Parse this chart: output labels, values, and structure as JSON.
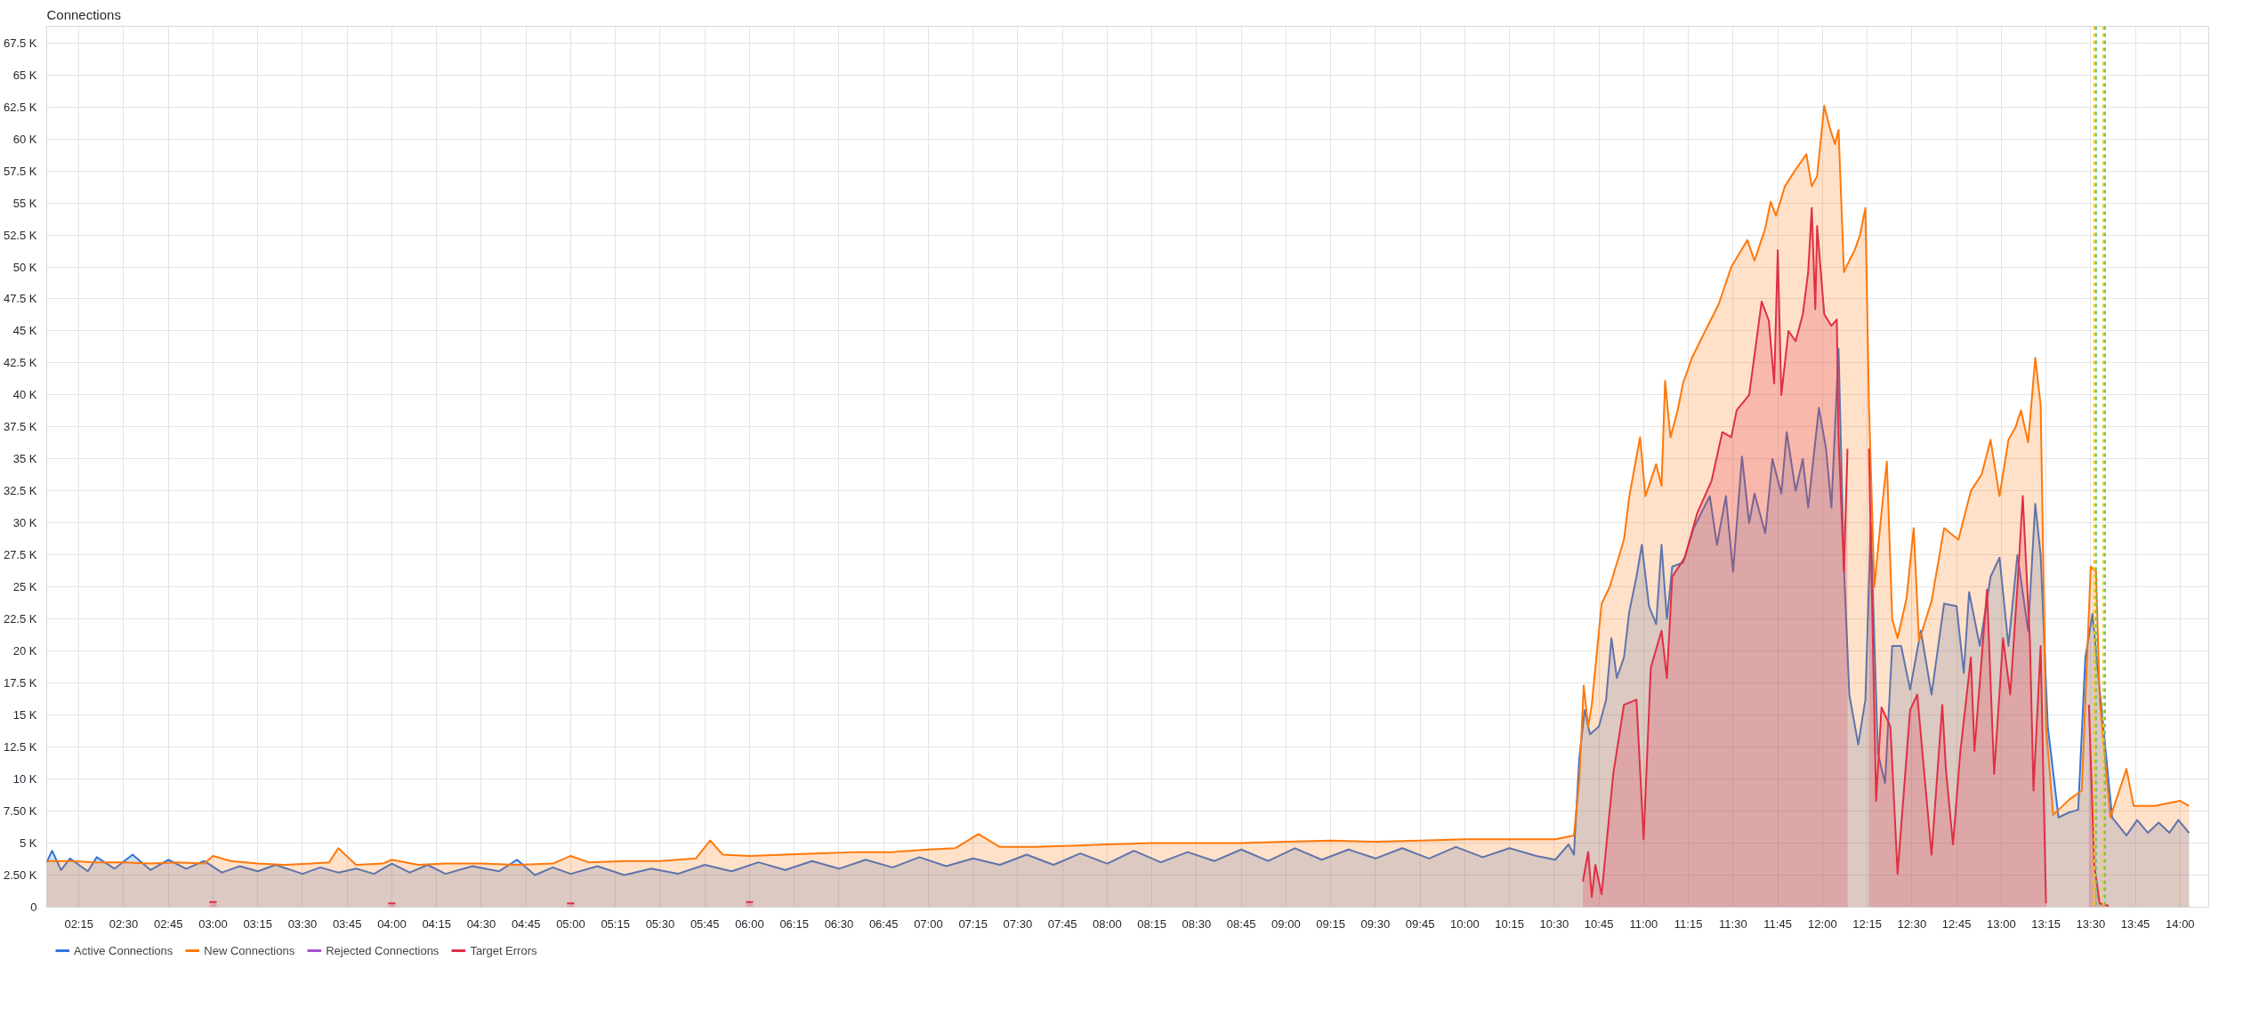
{
  "chart_data": {
    "type": "area",
    "title": "Connections",
    "xlim": [
      2.07,
      14.16
    ],
    "ylim": [
      0,
      68800
    ],
    "xticks": [
      {
        "value": 2.25,
        "label": "02:15"
      },
      {
        "value": 2.5,
        "label": "02:30"
      },
      {
        "value": 2.75,
        "label": "02:45"
      },
      {
        "value": 3,
        "label": "03:00"
      },
      {
        "value": 3.25,
        "label": "03:15"
      },
      {
        "value": 3.5,
        "label": "03:30"
      },
      {
        "value": 3.75,
        "label": "03:45"
      },
      {
        "value": 4,
        "label": "04:00"
      },
      {
        "value": 4.25,
        "label": "04:15"
      },
      {
        "value": 4.5,
        "label": "04:30"
      },
      {
        "value": 4.75,
        "label": "04:45"
      },
      {
        "value": 5,
        "label": "05:00"
      },
      {
        "value": 5.25,
        "label": "05:15"
      },
      {
        "value": 5.5,
        "label": "05:30"
      },
      {
        "value": 5.75,
        "label": "05:45"
      },
      {
        "value": 6,
        "label": "06:00"
      },
      {
        "value": 6.25,
        "label": "06:15"
      },
      {
        "value": 6.5,
        "label": "06:30"
      },
      {
        "value": 6.75,
        "label": "06:45"
      },
      {
        "value": 7,
        "label": "07:00"
      },
      {
        "value": 7.25,
        "label": "07:15"
      },
      {
        "value": 7.5,
        "label": "07:30"
      },
      {
        "value": 7.75,
        "label": "07:45"
      },
      {
        "value": 8,
        "label": "08:00"
      },
      {
        "value": 8.25,
        "label": "08:15"
      },
      {
        "value": 8.5,
        "label": "08:30"
      },
      {
        "value": 8.75,
        "label": "08:45"
      },
      {
        "value": 9,
        "label": "09:00"
      },
      {
        "value": 9.25,
        "label": "09:15"
      },
      {
        "value": 9.5,
        "label": "09:30"
      },
      {
        "value": 9.75,
        "label": "09:45"
      },
      {
        "value": 10,
        "label": "10:00"
      },
      {
        "value": 10.25,
        "label": "10:15"
      },
      {
        "value": 10.5,
        "label": "10:30"
      },
      {
        "value": 10.75,
        "label": "10:45"
      },
      {
        "value": 11,
        "label": "11:00"
      },
      {
        "value": 11.25,
        "label": "11:15"
      },
      {
        "value": 11.5,
        "label": "11:30"
      },
      {
        "value": 11.75,
        "label": "11:45"
      },
      {
        "value": 12,
        "label": "12:00"
      },
      {
        "value": 12.25,
        "label": "12:15"
      },
      {
        "value": 12.5,
        "label": "12:30"
      },
      {
        "value": 12.75,
        "label": "12:45"
      },
      {
        "value": 13,
        "label": "13:00"
      },
      {
        "value": 13.25,
        "label": "13:15"
      },
      {
        "value": 13.5,
        "label": "13:30"
      },
      {
        "value": 13.75,
        "label": "13:45"
      },
      {
        "value": 14,
        "label": "14:00"
      }
    ],
    "yticks": [
      0,
      {
        "value": 2500,
        "label": "2.50 K"
      },
      {
        "value": 5000,
        "label": "5 K"
      },
      {
        "value": 7500,
        "label": "7.50 K"
      },
      {
        "value": 10000,
        "label": "10 K"
      },
      {
        "value": 12500,
        "label": "12.5 K"
      },
      {
        "value": 15000,
        "label": "15 K"
      },
      {
        "value": 17500,
        "label": "17.5 K"
      },
      {
        "value": 20000,
        "label": "20 K"
      },
      {
        "value": 22500,
        "label": "22.5 K"
      },
      {
        "value": 25000,
        "label": "25 K"
      },
      {
        "value": 27500,
        "label": "27.5 K"
      },
      {
        "value": 30000,
        "label": "30 K"
      },
      {
        "value": 32500,
        "label": "32.5 K"
      },
      {
        "value": 35000,
        "label": "35 K"
      },
      {
        "value": 37500,
        "label": "37.5 K"
      },
      {
        "value": 40000,
        "label": "40 K"
      },
      {
        "value": 42500,
        "label": "42.5 K"
      },
      {
        "value": 45000,
        "label": "45 K"
      },
      {
        "value": 47500,
        "label": "47.5 K"
      },
      {
        "value": 50000,
        "label": "50 K"
      },
      {
        "value": 52500,
        "label": "52.5 K"
      },
      {
        "value": 55000,
        "label": "55 K"
      },
      {
        "value": 57500,
        "label": "57.5 K"
      },
      {
        "value": 60000,
        "label": "60 K"
      },
      {
        "value": 62500,
        "label": "62.5 K"
      },
      {
        "value": 65000,
        "label": "65 K"
      },
      {
        "value": 67500,
        "label": "67.5 K"
      }
    ],
    "grid": true,
    "legend": "bottom",
    "marker": "none",
    "line_style": "solid",
    "ref_lines": [
      {
        "axis": "x",
        "value": 13.52,
        "label": null,
        "color": "#f2cc0c",
        "line_style": "dashed"
      },
      {
        "axis": "x",
        "value": 13.53,
        "label": null,
        "color": "#73bf69",
        "line_style": "dashed"
      },
      {
        "axis": "x",
        "value": 13.57,
        "label": null,
        "color": "#f2cc0c",
        "line_style": "dashed"
      },
      {
        "axis": "x",
        "value": 13.58,
        "label": null,
        "color": "#73bf69",
        "line_style": "dashed"
      }
    ],
    "series": [
      {
        "name": "Active Connections",
        "color": "#3274d9",
        "x": [
          2.07,
          2.1,
          2.15,
          2.2,
          2.3,
          2.35,
          2.45,
          2.55,
          2.65,
          2.75,
          2.85,
          2.95,
          3.05,
          3.15,
          3.25,
          3.35,
          3.5,
          3.6,
          3.7,
          3.8,
          3.9,
          4.0,
          4.1,
          4.2,
          4.3,
          4.45,
          4.6,
          4.7,
          4.8,
          4.9,
          5.0,
          5.15,
          5.3,
          5.45,
          5.6,
          5.75,
          5.9,
          6.05,
          6.2,
          6.35,
          6.5,
          6.65,
          6.8,
          6.95,
          7.1,
          7.25,
          7.4,
          7.55,
          7.7,
          7.85,
          8.0,
          8.15,
          8.3,
          8.45,
          8.6,
          8.75,
          8.9,
          9.05,
          9.2,
          9.35,
          9.5,
          9.65,
          9.8,
          9.95,
          10.1,
          10.25,
          10.4,
          10.506,
          10.58,
          10.61,
          10.64,
          10.67,
          10.7,
          10.75,
          10.79,
          10.82,
          10.85,
          10.89,
          10.92,
          10.96,
          10.99,
          11.03,
          11.07,
          11.1,
          11.13,
          11.16,
          11.22,
          11.28,
          11.33,
          11.37,
          11.41,
          11.46,
          11.5,
          11.55,
          11.59,
          11.62,
          11.68,
          11.72,
          11.77,
          11.8,
          11.85,
          11.89,
          11.92,
          11.98,
          12.02,
          12.05,
          12.09,
          12.12,
          12.15,
          12.2,
          12.24,
          12.27,
          12.31,
          12.35,
          12.39,
          12.44,
          12.49,
          12.55,
          12.61,
          12.68,
          12.75,
          12.79,
          12.82,
          12.88,
          12.94,
          12.99,
          13.04,
          13.09,
          13.15,
          13.19,
          13.22,
          13.26,
          13.32,
          13.38,
          13.43,
          13.47,
          13.51,
          13.55,
          13.62,
          13.7,
          13.76,
          13.82,
          13.88,
          13.94,
          13.99,
          14.05
        ],
        "values": [
          3500,
          4400,
          2900,
          3800,
          2800,
          3900,
          3000,
          4100,
          2900,
          3700,
          3000,
          3600,
          2700,
          3200,
          2800,
          3300,
          2600,
          3100,
          2700,
          3000,
          2600,
          3400,
          2700,
          3300,
          2600,
          3200,
          2800,
          3700,
          2500,
          3100,
          2600,
          3200,
          2500,
          3000,
          2600,
          3300,
          2800,
          3500,
          2900,
          3600,
          3000,
          3700,
          3100,
          3900,
          3200,
          3800,
          3300,
          4100,
          3300,
          4200,
          3400,
          4400,
          3500,
          4300,
          3600,
          4500,
          3600,
          4600,
          3700,
          4500,
          3800,
          4600,
          3800,
          4700,
          3900,
          4600,
          4000,
          3700,
          4900,
          4100,
          11600,
          15400,
          13500,
          14100,
          16200,
          21000,
          17900,
          19500,
          23100,
          25800,
          28300,
          23500,
          22100,
          28300,
          22500,
          26600,
          26900,
          29600,
          31000,
          32100,
          28300,
          32100,
          26200,
          35200,
          30000,
          32300,
          29200,
          35000,
          32300,
          37100,
          32500,
          35000,
          31200,
          39000,
          35800,
          31200,
          43600,
          26600,
          16600,
          12700,
          16200,
          30000,
          12000,
          9700,
          20400,
          20400,
          17000,
          21600,
          16600,
          23700,
          23500,
          18300,
          24600,
          20400,
          25800,
          27300,
          20400,
          27500,
          21600,
          31500,
          27500,
          14100,
          7000,
          7400,
          7600,
          19500,
          22900,
          17000,
          7000,
          5600,
          6800,
          5800,
          6600,
          5800,
          6800,
          5800
        ]
      },
      {
        "name": "New Connections",
        "color": "#ff780a",
        "x": [
          2.07,
          2.2,
          2.35,
          2.5,
          2.65,
          2.8,
          2.95,
          3.0,
          3.1,
          3.25,
          3.4,
          3.55,
          3.65,
          3.7,
          3.8,
          3.95,
          4.0,
          4.15,
          4.3,
          4.5,
          4.7,
          4.9,
          5.0,
          5.1,
          5.3,
          5.5,
          5.7,
          5.78,
          5.85,
          6.0,
          6.2,
          6.4,
          6.6,
          6.8,
          7.0,
          7.15,
          7.28,
          7.4,
          7.6,
          7.8,
          8.0,
          8.25,
          8.5,
          8.75,
          9.0,
          9.25,
          9.5,
          9.75,
          10.0,
          10.25,
          10.4,
          10.506,
          10.61,
          10.64,
          10.665,
          10.69,
          10.71,
          10.765,
          10.81,
          10.89,
          10.92,
          10.98,
          11.01,
          11.07,
          11.1,
          11.12,
          11.15,
          11.19,
          11.22,
          11.27,
          11.33,
          11.42,
          11.49,
          11.58,
          11.62,
          11.68,
          11.71,
          11.74,
          11.79,
          11.85,
          11.91,
          11.94,
          11.97,
          12.01,
          12.04,
          12.07,
          12.09,
          12.12,
          12.15,
          12.18,
          12.21,
          12.24,
          12.26,
          12.29,
          12.33,
          12.36,
          12.39,
          12.42,
          12.47,
          12.51,
          12.54,
          12.61,
          12.68,
          12.76,
          12.83,
          12.89,
          12.94,
          12.99,
          13.04,
          13.08,
          13.11,
          13.15,
          13.19,
          13.22,
          13.25,
          13.29,
          13.38,
          13.45,
          13.5,
          13.53,
          13.55,
          13.61,
          13.7,
          13.74,
          13.86,
          14.0,
          14.05
        ],
        "values": [
          3600,
          3600,
          3500,
          3500,
          3400,
          3500,
          3400,
          4000,
          3600,
          3400,
          3300,
          3400,
          3500,
          4600,
          3300,
          3400,
          3700,
          3300,
          3400,
          3400,
          3300,
          3400,
          4000,
          3500,
          3600,
          3600,
          3800,
          5200,
          4100,
          4000,
          4100,
          4200,
          4300,
          4300,
          4500,
          4600,
          5700,
          4700,
          4700,
          4800,
          4900,
          5000,
          5000,
          5000,
          5100,
          5200,
          5100,
          5200,
          5300,
          5300,
          5300,
          5300,
          5600,
          9900,
          17300,
          14100,
          15800,
          23700,
          25000,
          28700,
          32100,
          36700,
          32100,
          34600,
          32900,
          41100,
          36700,
          38800,
          40900,
          42900,
          44600,
          47100,
          50000,
          52100,
          50500,
          53000,
          55100,
          54000,
          56300,
          57600,
          58800,
          56300,
          57100,
          62600,
          60900,
          59600,
          60700,
          49600,
          50500,
          51300,
          52500,
          54600,
          39200,
          25000,
          30800,
          34800,
          22500,
          21000,
          24100,
          29600,
          20800,
          23900,
          29600,
          28700,
          32500,
          33800,
          36500,
          32100,
          36500,
          37500,
          38800,
          36300,
          42900,
          39200,
          14100,
          7200,
          8400,
          9100,
          26600,
          26200,
          16200,
          7000,
          10800,
          7900,
          7900,
          8300,
          7900
        ]
      },
      {
        "name": "Rejected Connections",
        "color": "#a352cc"
      },
      {
        "name": "Target Errors",
        "color": "#e02f44",
        "x": [
          2.98,
          3.02,
          3.03,
          3.98,
          4.02,
          4.03,
          4.98,
          5.02,
          5.03,
          5.98,
          6.02,
          6.03,
          10.66,
          10.69,
          10.71,
          10.73,
          10.765,
          10.83,
          10.89,
          10.96,
          11.0,
          11.04,
          11.1,
          11.13,
          11.16,
          11.23,
          11.3,
          11.38,
          11.44,
          11.49,
          11.52,
          11.59,
          11.66,
          11.7,
          11.73,
          11.75,
          11.77,
          11.81,
          11.85,
          11.89,
          11.92,
          11.94,
          11.96,
          11.97,
          12.01,
          12.05,
          12.08,
          12.09,
          12.12,
          12.14,
          12.2,
          12.26,
          12.3,
          12.33,
          12.38,
          12.42,
          12.49,
          12.53,
          12.61,
          12.67,
          12.69,
          12.73,
          12.77,
          12.83,
          12.85,
          12.92,
          12.96,
          13.01,
          13.05,
          13.09,
          13.12,
          13.16,
          13.18,
          13.22,
          13.25,
          13.4,
          13.49,
          13.52,
          13.55,
          13.6
        ],
        "values": [
          400,
          400,
          null,
          300,
          300,
          null,
          300,
          300,
          null,
          400,
          400,
          null,
          2000,
          4300,
          800,
          3300,
          1000,
          10400,
          15800,
          16200,
          5300,
          18700,
          21600,
          17900,
          25800,
          27300,
          30800,
          33300,
          37100,
          36700,
          38800,
          40000,
          47300,
          45800,
          40900,
          51300,
          40000,
          45000,
          44200,
          46300,
          49600,
          54600,
          46700,
          53200,
          46300,
          45400,
          45900,
          36700,
          26200,
          35800,
          null,
          35800,
          8300,
          15600,
          14100,
          2600,
          15400,
          16600,
          4100,
          15800,
          10800,
          4900,
          12000,
          19500,
          12200,
          24800,
          10400,
          21000,
          16600,
          25000,
          32100,
          20800,
          9100,
          20400,
          300,
          null,
          15800,
          3300,
          300,
          100
        ]
      }
    ]
  }
}
